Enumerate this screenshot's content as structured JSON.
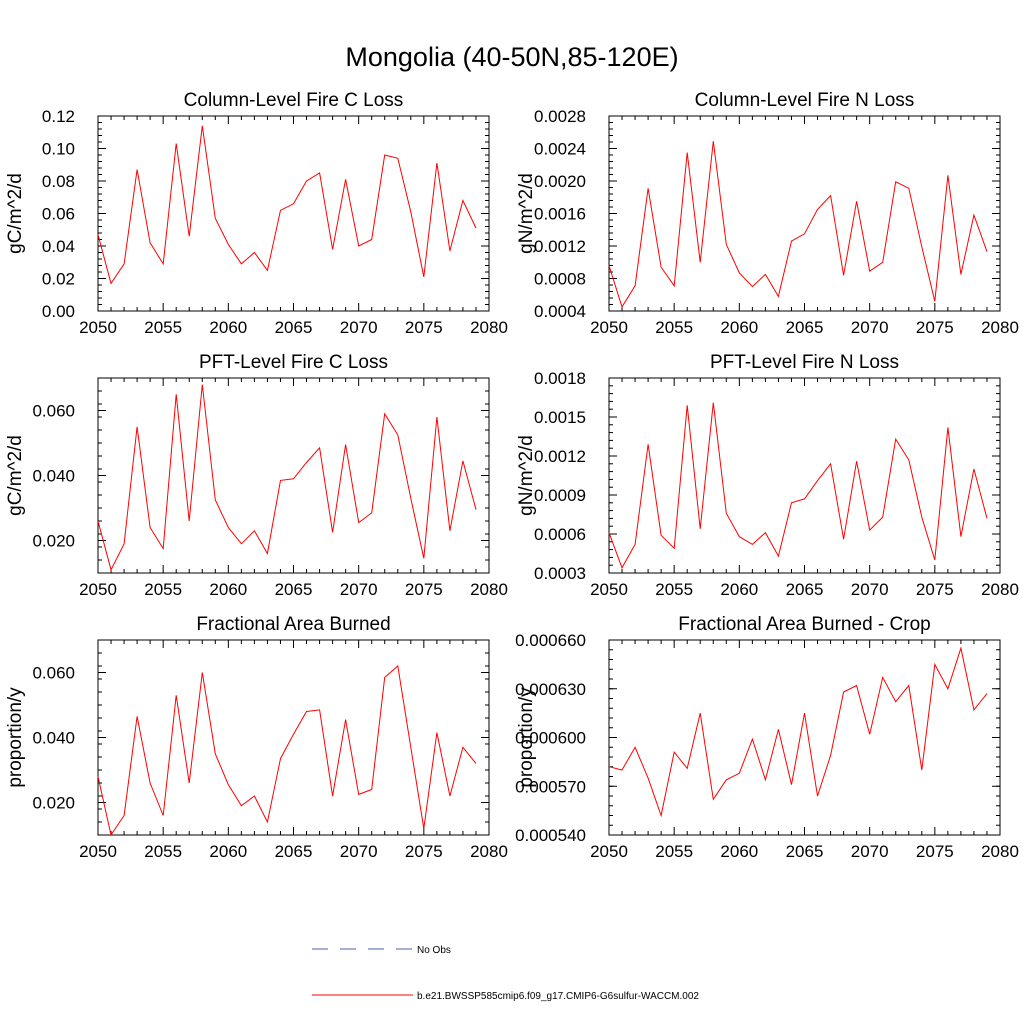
{
  "figure": {
    "title": "Mongolia (40-50N,85-120E)"
  },
  "colors": {
    "series": "#ff0000",
    "obs": "#4a5fa8",
    "axis": "#000000"
  },
  "legend": {
    "placement": "bottom-center",
    "entries": [
      {
        "label": "No Obs",
        "style": "dashed",
        "color": "#4a5fa8"
      },
      {
        "label": "b.e21.BWSSP585cmip6.f09_g17.CMIP6-G6sulfur-WACCM.002",
        "style": "solid",
        "color": "#ff0000"
      }
    ]
  },
  "chart_data": [
    {
      "type": "line",
      "title": "Column-Level Fire C Loss",
      "ylabel": "gC/m^2/d",
      "xlim": [
        2050,
        2080
      ],
      "ylim": [
        0.0,
        0.12
      ],
      "xticks": [
        "2050",
        "2055",
        "2060",
        "2065",
        "2070",
        "2075",
        "2080"
      ],
      "yticks": [
        "0.00",
        "0.02",
        "0.04",
        "0.06",
        "0.08",
        "0.10",
        "0.12"
      ],
      "x": [
        2050,
        2051,
        2052,
        2053,
        2054,
        2055,
        2056,
        2057,
        2058,
        2059,
        2060,
        2061,
        2062,
        2063,
        2064,
        2065,
        2066,
        2067,
        2068,
        2069,
        2070,
        2071,
        2072,
        2073,
        2074,
        2075,
        2076,
        2077,
        2078,
        2079
      ],
      "series": [
        {
          "values": [
            0.047,
            0.017,
            0.029,
            0.087,
            0.042,
            0.029,
            0.103,
            0.046,
            0.114,
            0.057,
            0.041,
            0.029,
            0.036,
            0.025,
            0.062,
            0.066,
            0.08,
            0.085,
            0.038,
            0.081,
            0.04,
            0.044,
            0.096,
            0.094,
            0.061,
            0.021,
            0.091,
            0.037,
            0.068,
            0.051
          ]
        }
      ]
    },
    {
      "type": "line",
      "title": "Column-Level Fire N Loss",
      "ylabel": "gN/m^2/d",
      "xlim": [
        2050,
        2080
      ],
      "ylim": [
        0.0004,
        0.0028
      ],
      "xticks": [
        "2050",
        "2055",
        "2060",
        "2065",
        "2070",
        "2075",
        "2080"
      ],
      "yticks": [
        "0.0004",
        "0.0008",
        "0.0012",
        "0.0016",
        "0.0020",
        "0.0024",
        "0.0028"
      ],
      "x": [
        2050,
        2051,
        2052,
        2053,
        2054,
        2055,
        2056,
        2057,
        2058,
        2059,
        2060,
        2061,
        2062,
        2063,
        2064,
        2065,
        2066,
        2067,
        2068,
        2069,
        2070,
        2071,
        2072,
        2073,
        2074,
        2075,
        2076,
        2077,
        2078,
        2079
      ],
      "series": [
        {
          "values": [
            0.00096,
            0.00045,
            0.00071,
            0.00191,
            0.00094,
            0.00071,
            0.00235,
            0.001,
            0.00249,
            0.00122,
            0.00087,
            0.0007,
            0.00085,
            0.00058,
            0.00126,
            0.00135,
            0.00165,
            0.00182,
            0.00084,
            0.00175,
            0.00089,
            0.001,
            0.00199,
            0.00191,
            0.00119,
            0.00052,
            0.00207,
            0.00085,
            0.00158,
            0.00113
          ]
        }
      ]
    },
    {
      "type": "line",
      "title": "PFT-Level Fire C Loss",
      "ylabel": "gC/m^2/d",
      "xlim": [
        2050,
        2080
      ],
      "ylim": [
        0.01,
        0.07
      ],
      "xticks": [
        "2050",
        "2055",
        "2060",
        "2065",
        "2070",
        "2075",
        "2080"
      ],
      "yticks": [
        "0.020",
        "0.040",
        "0.060"
      ],
      "ytick_values": [
        0.02,
        0.04,
        0.06
      ],
      "x": [
        2050,
        2051,
        2052,
        2053,
        2054,
        2055,
        2056,
        2057,
        2058,
        2059,
        2060,
        2061,
        2062,
        2063,
        2064,
        2065,
        2066,
        2067,
        2068,
        2069,
        2070,
        2071,
        2072,
        2073,
        2074,
        2075,
        2076,
        2077,
        2078,
        2079
      ],
      "series": [
        {
          "values": [
            0.026,
            0.011,
            0.019,
            0.055,
            0.024,
            0.0175,
            0.065,
            0.026,
            0.068,
            0.0325,
            0.024,
            0.019,
            0.023,
            0.016,
            0.0385,
            0.039,
            0.044,
            0.0485,
            0.0225,
            0.0495,
            0.0255,
            0.0285,
            0.059,
            0.0525,
            0.033,
            0.0145,
            0.058,
            0.023,
            0.0445,
            0.0295
          ]
        }
      ]
    },
    {
      "type": "line",
      "title": "PFT-Level Fire N Loss",
      "ylabel": "gN/m^2/d",
      "xlim": [
        2050,
        2080
      ],
      "ylim": [
        0.0003,
        0.0018
      ],
      "xticks": [
        "2050",
        "2055",
        "2060",
        "2065",
        "2070",
        "2075",
        "2080"
      ],
      "yticks": [
        "0.0003",
        "0.0006",
        "0.0009",
        "0.0012",
        "0.0015",
        "0.0018"
      ],
      "x": [
        2050,
        2051,
        2052,
        2053,
        2054,
        2055,
        2056,
        2057,
        2058,
        2059,
        2060,
        2061,
        2062,
        2063,
        2064,
        2065,
        2066,
        2067,
        2068,
        2069,
        2070,
        2071,
        2072,
        2073,
        2074,
        2075,
        2076,
        2077,
        2078,
        2079
      ],
      "series": [
        {
          "values": [
            0.00061,
            0.00034,
            0.00052,
            0.00129,
            0.00059,
            0.00049,
            0.00159,
            0.00064,
            0.00161,
            0.00076,
            0.00058,
            0.00052,
            0.00061,
            0.00043,
            0.00084,
            0.00087,
            0.00101,
            0.00114,
            0.00056,
            0.00116,
            0.00063,
            0.00073,
            0.00133,
            0.00117,
            0.00073,
            0.0004,
            0.00142,
            0.00058,
            0.0011,
            0.00072
          ]
        }
      ]
    },
    {
      "type": "line",
      "title": "Fractional Area Burned",
      "ylabel": "proportion/y",
      "xlim": [
        2050,
        2080
      ],
      "ylim": [
        0.01,
        0.07
      ],
      "xticks": [
        "2050",
        "2055",
        "2060",
        "2065",
        "2070",
        "2075",
        "2080"
      ],
      "yticks": [
        "0.020",
        "0.040",
        "0.060"
      ],
      "ytick_values": [
        0.02,
        0.04,
        0.06
      ],
      "x": [
        2050,
        2051,
        2052,
        2053,
        2054,
        2055,
        2056,
        2057,
        2058,
        2059,
        2060,
        2061,
        2062,
        2063,
        2064,
        2065,
        2066,
        2067,
        2068,
        2069,
        2070,
        2071,
        2072,
        2073,
        2074,
        2075,
        2076,
        2077,
        2078,
        2079
      ],
      "series": [
        {
          "values": [
            0.028,
            0.01,
            0.016,
            0.0465,
            0.026,
            0.016,
            0.053,
            0.026,
            0.06,
            0.035,
            0.0255,
            0.019,
            0.022,
            0.014,
            0.0335,
            0.041,
            0.048,
            0.0485,
            0.022,
            0.0455,
            0.0225,
            0.024,
            0.0585,
            0.062,
            0.037,
            0.012,
            0.0415,
            0.022,
            0.037,
            0.032
          ]
        }
      ]
    },
    {
      "type": "line",
      "title": "Fractional Area Burned - Crop",
      "ylabel": "proportion/y",
      "xlim": [
        2050,
        2080
      ],
      "ylim": [
        0.00054,
        0.00066
      ],
      "xticks": [
        "2050",
        "2055",
        "2060",
        "2065",
        "2070",
        "2075",
        "2080"
      ],
      "yticks": [
        "0.000540",
        "0.000570",
        "0.000600",
        "0.000630",
        "0.000660"
      ],
      "x": [
        2050,
        2051,
        2052,
        2053,
        2054,
        2055,
        2056,
        2057,
        2058,
        2059,
        2060,
        2061,
        2062,
        2063,
        2064,
        2065,
        2066,
        2067,
        2068,
        2069,
        2070,
        2071,
        2072,
        2073,
        2074,
        2075,
        2076,
        2077,
        2078,
        2079
      ],
      "series": [
        {
          "values": [
            0.000582,
            0.00058,
            0.000594,
            0.000575,
            0.000552,
            0.000591,
            0.000581,
            0.000615,
            0.000562,
            0.000574,
            0.000578,
            0.000599,
            0.000574,
            0.000605,
            0.000571,
            0.000615,
            0.000564,
            0.000589,
            0.000628,
            0.000632,
            0.000602,
            0.000637,
            0.000622,
            0.000632,
            0.00058,
            0.000645,
            0.00063,
            0.000655,
            0.000617,
            0.000627
          ]
        }
      ]
    }
  ]
}
